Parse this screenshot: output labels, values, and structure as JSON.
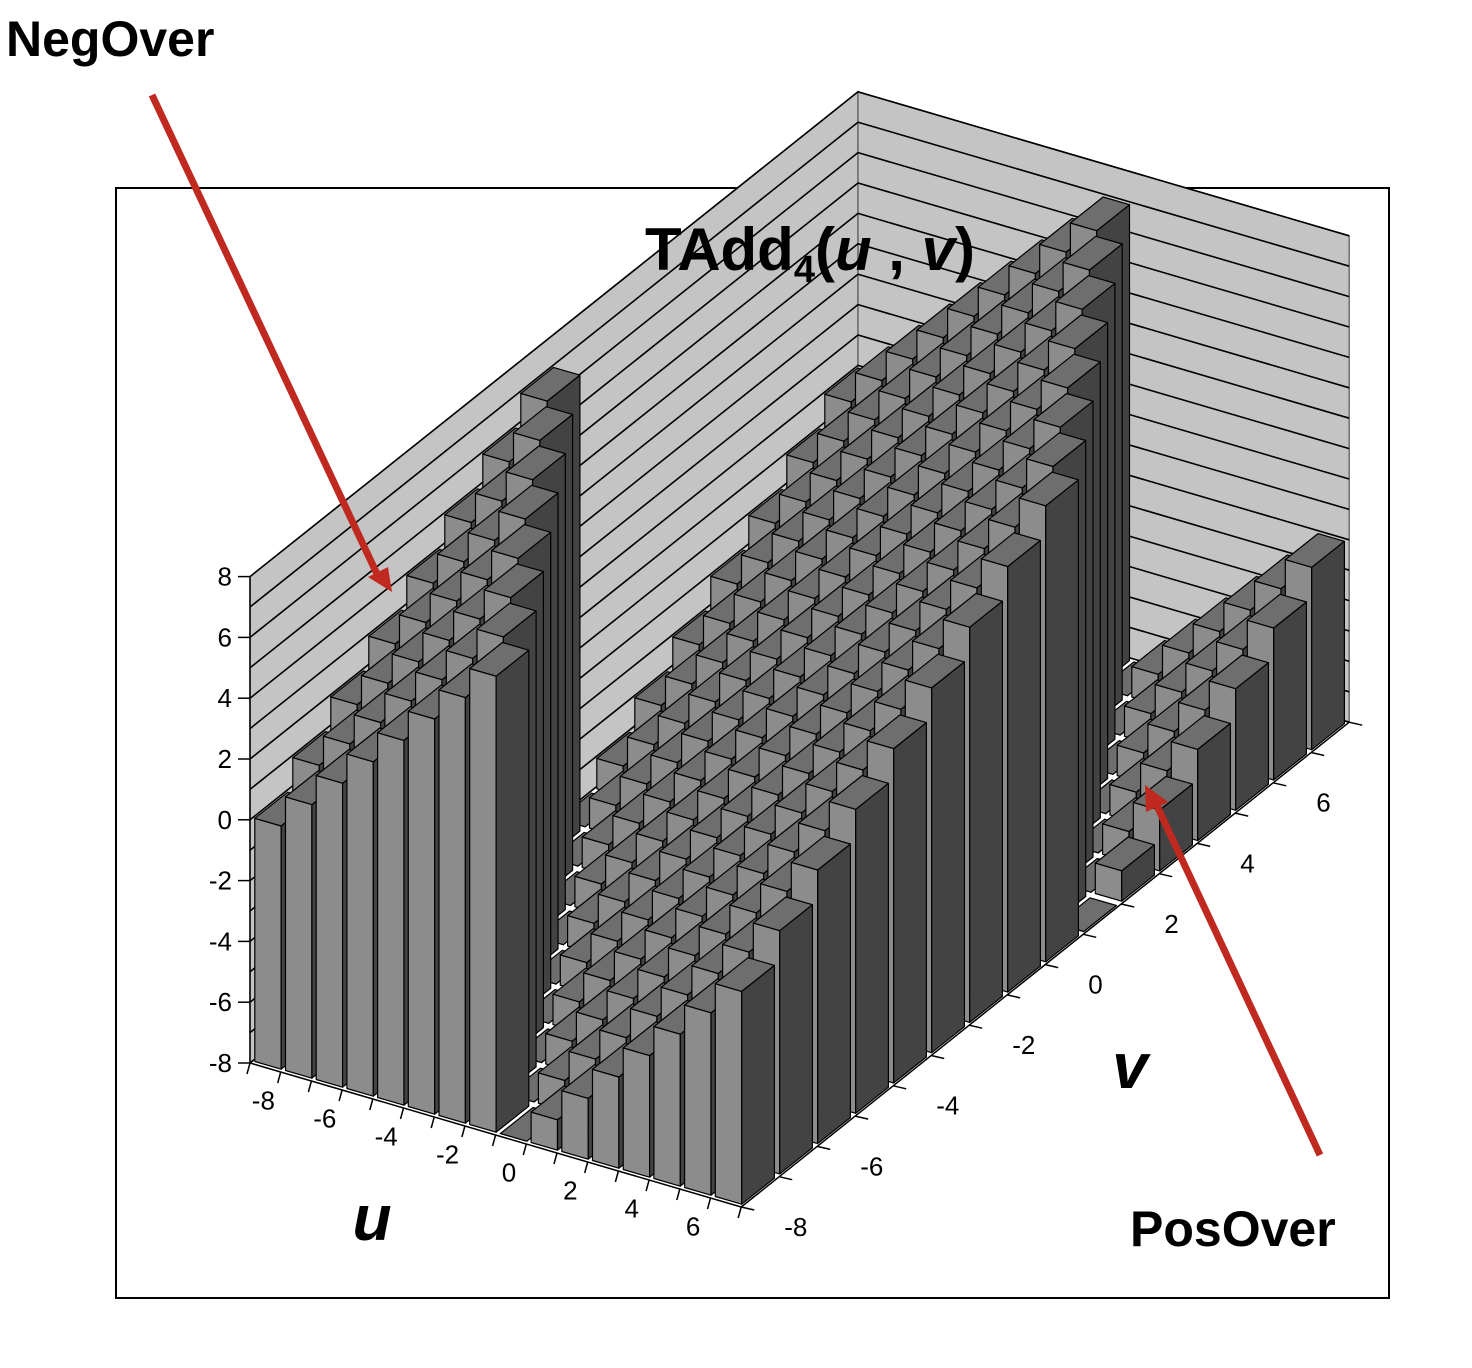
{
  "chart_data": {
    "type": "bar3d",
    "title": "TAdd",
    "title_subscript": "4",
    "title_args": [
      "u",
      "v"
    ],
    "xlabel": "u",
    "ylabel": "v",
    "zlim": [
      -8,
      8
    ],
    "z_ticks": [
      -8,
      -6,
      -4,
      -2,
      0,
      2,
      4,
      6,
      8
    ],
    "u_values": [
      -8,
      -7,
      -6,
      -5,
      -4,
      -3,
      -2,
      -1,
      0,
      1,
      2,
      3,
      4,
      5,
      6,
      7
    ],
    "v_values": [
      -8,
      -7,
      -6,
      -5,
      -4,
      -3,
      -2,
      -1,
      0,
      1,
      2,
      3,
      4,
      5,
      6,
      7
    ],
    "u_tick_labels": [
      "-8",
      "-6",
      "-4",
      "-2",
      "0",
      "2",
      "4",
      "6"
    ],
    "v_tick_labels": [
      "-8",
      "-6",
      "-4",
      "-2",
      "0",
      "2",
      "4",
      "6"
    ],
    "z_tick_labels": [
      "-8",
      "-6",
      "-4",
      "-2",
      "0",
      "2",
      "4",
      "6",
      "8"
    ],
    "value_rule": "z = u + v wrapped to the 4-bit two's-complement range [-8, 7]",
    "grid": true,
    "colors": {
      "bar_front": "#8c8c8c",
      "bar_top": "#6e6e6e",
      "bar_side": "#434343",
      "wall": "#c4c4c4",
      "arrow": "#c0291f"
    }
  },
  "annotations": [
    {
      "label": "NegOver"
    },
    {
      "label": "PosOver"
    }
  ]
}
